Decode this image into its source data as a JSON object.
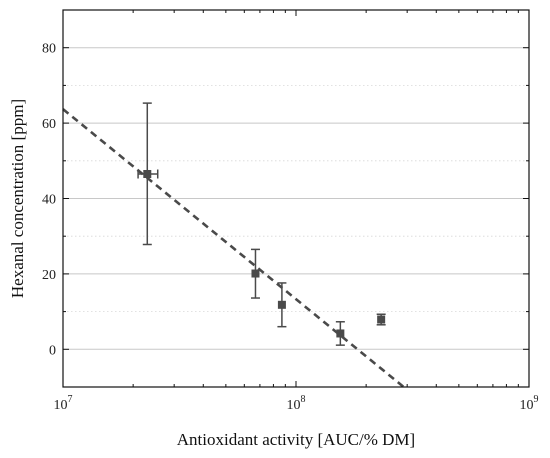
{
  "chart_data": {
    "type": "scatter",
    "xlabel": "Antioxidant activity [AUC/% DM]",
    "ylabel": "Hexanal concentration [ppm]",
    "xscale": "log",
    "xlim": [
      10000000,
      1000000000
    ],
    "ylim": [
      -10,
      90
    ],
    "x_ticks": [
      {
        "value": 10000000,
        "mantissa": "10",
        "exponent": "7"
      },
      {
        "value": 100000000,
        "mantissa": "10",
        "exponent": "8"
      },
      {
        "value": 1000000000,
        "mantissa": "10",
        "exponent": "9"
      }
    ],
    "y_ticks": [
      0,
      20,
      40,
      60,
      80
    ],
    "y_tick_labels": [
      "0",
      "20",
      "40",
      "60",
      "80"
    ],
    "grid": {
      "major_y": true,
      "minor_y": true,
      "x": false
    },
    "points": [
      {
        "x": 23000000,
        "y": 46.5,
        "yerr_low": 27.8,
        "yerr_high": 65.3,
        "xerr_low": 21000000,
        "xerr_high": 25500000
      },
      {
        "x": 67000000,
        "y": 20.1,
        "yerr_low": 13.6,
        "yerr_high": 26.5
      },
      {
        "x": 87000000,
        "y": 11.8,
        "yerr_low": 6.0,
        "yerr_high": 17.6
      },
      {
        "x": 155000000,
        "y": 4.2,
        "yerr_low": 1.1,
        "yerr_high": 7.3
      },
      {
        "x": 232000000,
        "y": 7.9,
        "yerr_low": 6.5,
        "yerr_high": 9.3
      }
    ],
    "fit_line": {
      "style": "dashed",
      "x_start": 10000000,
      "y_start": 63.7,
      "x_end": 290000000,
      "y_end": -10
    },
    "colors": {
      "marker": "#4a4a4a",
      "fit": "#4a4a4a",
      "grid": "#c8c8c8",
      "axis": "#111111"
    }
  }
}
